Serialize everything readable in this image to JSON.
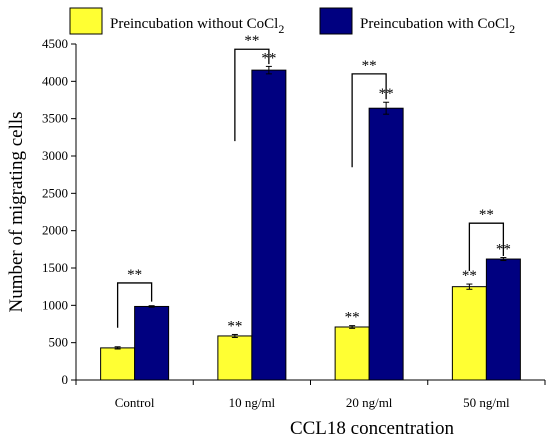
{
  "chart_data": {
    "type": "bar",
    "title": "",
    "xlabel": "CCL18 concentration",
    "ylabel": "Number of migrating cells",
    "categories": [
      "Control",
      "10 ng/ml",
      "20 ng/ml",
      "50 ng/ml"
    ],
    "ylim": [
      0,
      4500
    ],
    "yticks": [
      0,
      500,
      1000,
      1500,
      2000,
      2500,
      3000,
      3500,
      4000,
      4500
    ],
    "grid": false,
    "legend_position": "top",
    "series": [
      {
        "name": "Preincubation without CoCl",
        "name_subscript": "2",
        "color": "#ffff33",
        "values": [
          430,
          590,
          710,
          1250
        ],
        "errors": [
          15,
          20,
          18,
          35
        ],
        "labels": [
          "",
          "**",
          "**",
          "**"
        ]
      },
      {
        "name": "Preincubation with CoCl",
        "name_subscript": "2",
        "color": "#000080",
        "values": [
          985,
          4150,
          3640,
          1620
        ],
        "errors": [
          10,
          50,
          80,
          20
        ],
        "labels": [
          "",
          "**",
          "**",
          "**"
        ]
      }
    ],
    "brackets": [
      {
        "category": 0,
        "label": "**",
        "left_end": 700,
        "right_end": 1050,
        "top": 1300
      },
      {
        "category": 1,
        "label": "**",
        "left_end": 3200,
        "right_end": 4230,
        "top": 4430
      },
      {
        "category": 2,
        "label": "**",
        "left_end": 2850,
        "right_end": 3760,
        "top": 4100
      },
      {
        "category": 3,
        "label": "**",
        "left_end": 1460,
        "right_end": 1660,
        "top": 2100
      }
    ]
  }
}
